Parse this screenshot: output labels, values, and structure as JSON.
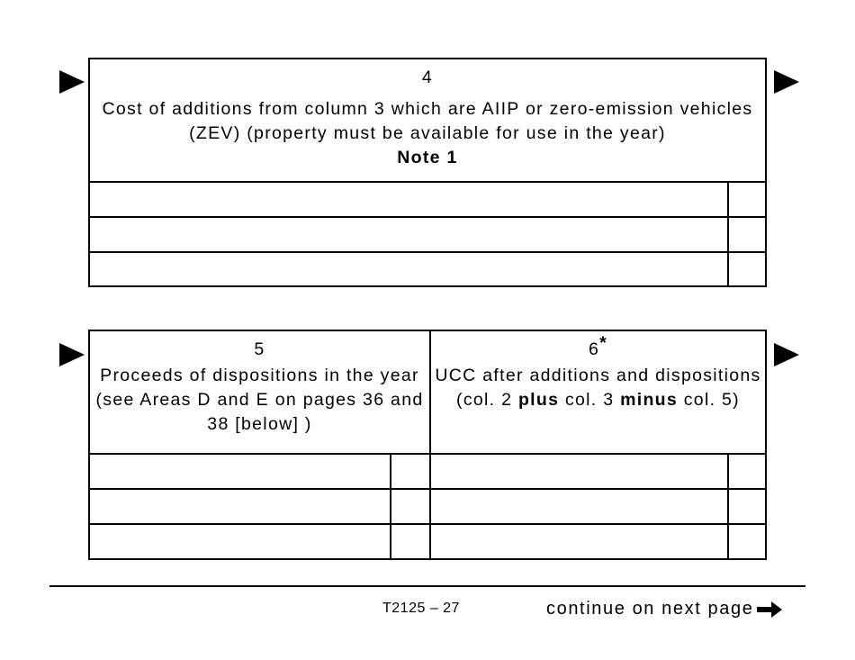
{
  "section4": {
    "col_number": "4",
    "description": "Cost of additions from column 3 which are AIIP or zero-emission vehicles (ZEV) (property must be available for use in the year)",
    "note": "Note 1",
    "rows": 3
  },
  "section5": {
    "col_number": "5",
    "description": "Proceeds of dispositions in the year (see Areas D and E on pages 36 and 38 [below] )",
    "rows": 3
  },
  "section6": {
    "col_number": "6",
    "asterisk": "*",
    "desc_part1": "UCC after additions and dispositions (col. 2 ",
    "desc_bold1": "plus",
    "desc_part2": " col. 3 ",
    "desc_bold2": "minus",
    "desc_part3": " col. 5)",
    "rows": 3
  },
  "footer": {
    "page_label": "T2125 – 27",
    "continue_label": "continue on next page",
    "continue_icon": "arrow-right-icon"
  }
}
